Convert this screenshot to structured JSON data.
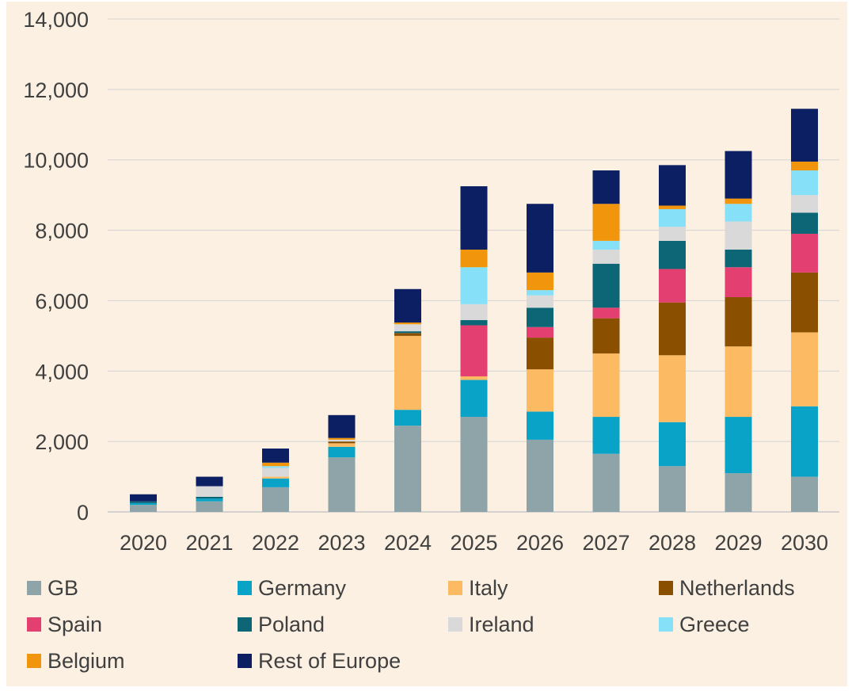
{
  "chart_data": {
    "type": "bar",
    "stacked": true,
    "title": "",
    "xlabel": "",
    "ylabel": "",
    "ylim": [
      0,
      14000
    ],
    "yticks": [
      0,
      2000,
      4000,
      6000,
      8000,
      10000,
      12000,
      14000
    ],
    "ytick_labels": [
      "0",
      "2,000",
      "4,000",
      "6,000",
      "8,000",
      "10,000",
      "12,000",
      "14,000"
    ],
    "grid": true,
    "legend_position": "bottom",
    "categories": [
      "2020",
      "2021",
      "2022",
      "2023",
      "2024",
      "2025",
      "2026",
      "2027",
      "2028",
      "2029",
      "2030"
    ],
    "series": [
      {
        "name": "GB",
        "color": "#8ea4a8",
        "values": [
          200,
          300,
          700,
          1550,
          2450,
          2700,
          2050,
          1650,
          1300,
          1100,
          1000
        ]
      },
      {
        "name": "Germany",
        "color": "#0aa3c8",
        "values": [
          50,
          80,
          250,
          300,
          450,
          1050,
          800,
          1050,
          1250,
          1600,
          2000
        ]
      },
      {
        "name": "Italy",
        "color": "#fcbb62",
        "values": [
          0,
          0,
          50,
          100,
          2100,
          100,
          1200,
          1800,
          1900,
          2000,
          2100
        ]
      },
      {
        "name": "Netherlands",
        "color": "#8a5000",
        "values": [
          0,
          0,
          0,
          50,
          80,
          0,
          900,
          1000,
          1500,
          1400,
          1700
        ]
      },
      {
        "name": "Spain",
        "color": "#e33f71",
        "values": [
          0,
          0,
          0,
          0,
          0,
          1450,
          300,
          300,
          950,
          850,
          1100
        ]
      },
      {
        "name": "Poland",
        "color": "#0d6676",
        "values": [
          50,
          50,
          0,
          0,
          50,
          150,
          550,
          1250,
          800,
          500,
          600
        ]
      },
      {
        "name": "Ireland",
        "color": "#d9d9d9",
        "values": [
          0,
          300,
          250,
          50,
          200,
          450,
          350,
          400,
          400,
          800,
          500
        ]
      },
      {
        "name": "Greece",
        "color": "#86e0f8",
        "values": [
          0,
          0,
          50,
          0,
          0,
          1050,
          150,
          250,
          500,
          500,
          700
        ]
      },
      {
        "name": "Belgium",
        "color": "#f1950c",
        "values": [
          0,
          0,
          100,
          50,
          50,
          500,
          500,
          1050,
          100,
          150,
          250
        ]
      },
      {
        "name": "Rest of Europe",
        "color": "#0b1f62",
        "values": [
          200,
          270,
          400,
          650,
          950,
          1800,
          1950,
          950,
          1150,
          1350,
          1500
        ]
      }
    ]
  }
}
